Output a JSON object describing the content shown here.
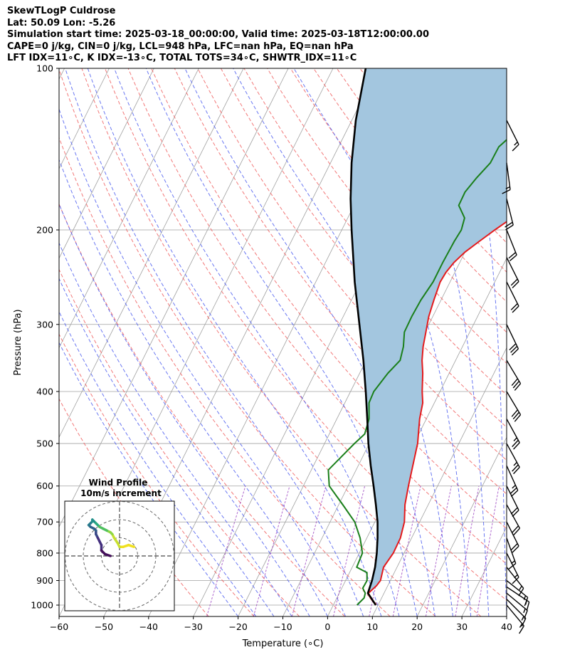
{
  "header": {
    "line1": "SkewTLogP Culdrose",
    "line2": "Lat: 50.09   Lon: -5.26",
    "line3": "Simulation start time: 2025-03-18_00:00:00, Valid time: 2025-03-18T12:00:00.00",
    "line4": "CAPE=0 j/kg, CIN=0 j/kg, LCL=948 hPa, LFC=nan hPa, EQ=nan hPa",
    "line5": "LFT IDX=11∘C, K IDX=-13∘C, TOTAL TOTS=34∘C, SHWTR_IDX=11∘C"
  },
  "chart_data": {
    "type": "line",
    "subtype": "skew-t log-p",
    "xlabel": "Temperature (∘C)",
    "ylabel": "Pressure (hPa)",
    "xlim": [
      -60,
      40
    ],
    "ylim": [
      1050,
      100
    ],
    "x_ticks": [
      "−60",
      "−50",
      "−40",
      "−30",
      "−20",
      "−10",
      "0",
      "10",
      "20",
      "30",
      "40"
    ],
    "y_ticks": [
      "100",
      "200",
      "300",
      "400",
      "500",
      "600",
      "700",
      "800",
      "900",
      "1000"
    ],
    "colors": {
      "temperature": "#e41a1c",
      "dewpoint": "#1a7f1a",
      "parcel": "#000000",
      "shade": "#a3c6df",
      "dry_adiabat": "#f06060",
      "moist_adiabat": "#5060f0",
      "mixing_ratio": "#9a40c0",
      "isotherm": "#a0a0a0"
    },
    "series": [
      {
        "name": "Temperature",
        "points": [
          [
            9.5,
            1000
          ],
          [
            7.5,
            970
          ],
          [
            6.5,
            950
          ],
          [
            7.5,
            920
          ],
          [
            7.8,
            900
          ],
          [
            7.0,
            850
          ],
          [
            7.6,
            800
          ],
          [
            7.5,
            750
          ],
          [
            6.6,
            700
          ],
          [
            4.8,
            650
          ],
          [
            3.5,
            600
          ],
          [
            2.2,
            550
          ],
          [
            0.8,
            500
          ],
          [
            -1.5,
            450
          ],
          [
            -2.6,
            420
          ],
          [
            -4.0,
            400
          ],
          [
            -5.9,
            370
          ],
          [
            -7.5,
            350
          ],
          [
            -8.8,
            330
          ],
          [
            -9.8,
            310
          ],
          [
            -10.9,
            290
          ],
          [
            -11.6,
            270
          ],
          [
            -12.2,
            250
          ],
          [
            -12.0,
            240
          ],
          [
            -11.3,
            230
          ],
          [
            -10.0,
            220
          ],
          [
            -8.0,
            210
          ],
          [
            -5.8,
            200
          ],
          [
            -3.3,
            190
          ],
          [
            -0.8,
            180
          ],
          [
            1.2,
            170
          ],
          [
            3.0,
            160
          ],
          [
            4.8,
            150
          ],
          [
            5.7,
            140
          ],
          [
            6.9,
            130
          ],
          [
            8.3,
            120
          ],
          [
            10.2,
            110
          ],
          [
            12.2,
            100
          ]
        ]
      },
      {
        "name": "Dewpoint",
        "points": [
          [
            5.3,
            1000
          ],
          [
            6.1,
            970
          ],
          [
            5.8,
            950
          ],
          [
            4.7,
            930
          ],
          [
            4.8,
            900
          ],
          [
            3.9,
            870
          ],
          [
            1.0,
            850
          ],
          [
            0.7,
            800
          ],
          [
            -1.5,
            750
          ],
          [
            -4.5,
            700
          ],
          [
            -9.1,
            650
          ],
          [
            -14.2,
            600
          ],
          [
            -16.2,
            560
          ],
          [
            -13.3,
            500
          ],
          [
            -12.1,
            480
          ],
          [
            -12.8,
            450
          ],
          [
            -14.6,
            420
          ],
          [
            -14.8,
            400
          ],
          [
            -13.7,
            370
          ],
          [
            -12.4,
            350
          ],
          [
            -13.2,
            330
          ],
          [
            -14.6,
            310
          ],
          [
            -14.7,
            290
          ],
          [
            -14.5,
            270
          ],
          [
            -13.8,
            250
          ],
          [
            -13.8,
            230
          ],
          [
            -13.6,
            210
          ],
          [
            -13.3,
            200
          ],
          [
            -13.9,
            190
          ],
          [
            -16.6,
            180
          ],
          [
            -16.7,
            170
          ],
          [
            -15.7,
            160
          ],
          [
            -14.3,
            150
          ],
          [
            -14.2,
            140
          ],
          [
            -11.8,
            130
          ],
          [
            -10.0,
            120
          ],
          [
            -7.0,
            110
          ],
          [
            -4.6,
            100
          ]
        ]
      },
      {
        "name": "Parcel",
        "points": [
          [
            9.5,
            1000
          ],
          [
            6.4,
            950
          ],
          [
            5.9,
            900
          ],
          [
            5.1,
            850
          ],
          [
            3.9,
            800
          ],
          [
            2.4,
            750
          ],
          [
            0.6,
            700
          ],
          [
            -1.7,
            650
          ],
          [
            -4.3,
            600
          ],
          [
            -7.2,
            550
          ],
          [
            -10.2,
            500
          ],
          [
            -13.2,
            450
          ],
          [
            -16.6,
            400
          ],
          [
            -20.6,
            350
          ],
          [
            -25.5,
            300
          ],
          [
            -31.3,
            250
          ],
          [
            -37.8,
            200
          ],
          [
            -41.5,
            175
          ],
          [
            -45.3,
            150
          ],
          [
            -49.1,
            125
          ],
          [
            -52.7,
            100
          ]
        ]
      }
    ],
    "wind_barbs": {
      "pressures_hpa": [
        1000,
        975,
        950,
        925,
        900,
        850,
        800,
        750,
        700,
        650,
        600,
        550,
        500,
        450,
        400,
        350,
        300,
        250,
        225,
        200,
        175,
        150,
        125
      ],
      "u_kt": [
        10,
        12,
        12,
        12,
        10,
        8,
        6,
        5,
        8,
        10,
        10,
        10,
        12,
        12,
        15,
        15,
        12,
        10,
        10,
        8,
        5,
        2,
        6
      ],
      "v_kt": [
        -12,
        -12,
        -10,
        -8,
        -8,
        -10,
        -12,
        -14,
        -16,
        -18,
        -20,
        -22,
        -22,
        -22,
        -25,
        -25,
        -25,
        -20,
        -20,
        -20,
        -20,
        -15,
        -12
      ]
    },
    "hodograph": {
      "title": "Wind Profile",
      "subtitle": "10m/s increment",
      "ring_spacing_ms": 10,
      "u_ms": [
        8,
        5,
        2,
        0,
        -1,
        -3,
        -4,
        -5,
        -7,
        -9,
        -11,
        -12,
        -13,
        -14,
        -15,
        -15,
        -16,
        -17,
        -16,
        -14,
        -13,
        -13,
        -13,
        -12,
        -11,
        -10,
        -10,
        -8,
        -5
      ],
      "v_ms": [
        5,
        6,
        5,
        5,
        7,
        10,
        12,
        13,
        14,
        15,
        16,
        17,
        18,
        19,
        20,
        19,
        18,
        17,
        16,
        15,
        14,
        13,
        12,
        10,
        8,
        6,
        3,
        1,
        0
      ]
    }
  }
}
